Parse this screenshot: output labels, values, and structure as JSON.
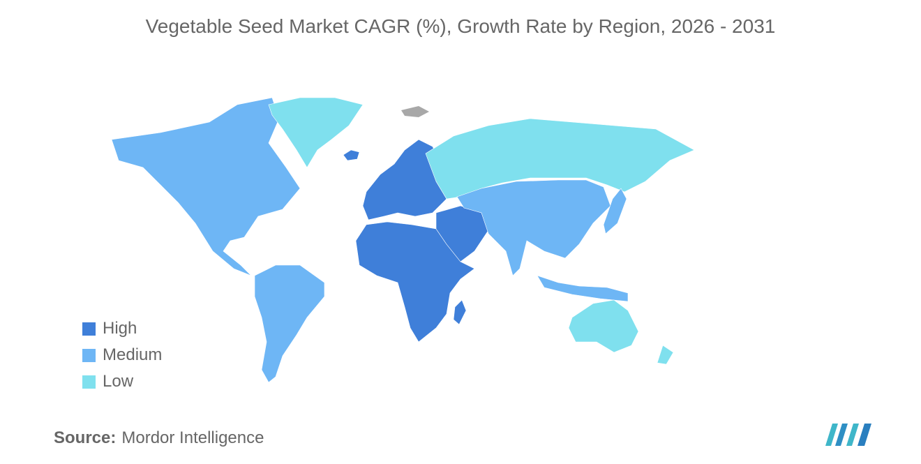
{
  "title": "Vegetable Seed Market CAGR (%), Growth Rate by Region, 2026 - 2031",
  "legend": [
    {
      "label": "High",
      "color": "#3f7fd9"
    },
    {
      "label": "Medium",
      "color": "#6eb6f5"
    },
    {
      "label": "Low",
      "color": "#7fe0ee"
    }
  ],
  "colors": {
    "high": "#3f7fd9",
    "medium": "#6eb6f5",
    "low": "#7fe0ee",
    "no_data": "#a8a8a8"
  },
  "regions": [
    {
      "name": "north-america",
      "level": "Medium"
    },
    {
      "name": "greenland",
      "level": "Low"
    },
    {
      "name": "south-america",
      "level": "Medium"
    },
    {
      "name": "europe",
      "level": "High"
    },
    {
      "name": "africa",
      "level": "High"
    },
    {
      "name": "middle-east",
      "level": "High"
    },
    {
      "name": "russia",
      "level": "Low"
    },
    {
      "name": "asia",
      "level": "Medium"
    },
    {
      "name": "australia",
      "level": "Low"
    },
    {
      "name": "new-zealand",
      "level": "Low"
    }
  ],
  "source": {
    "label": "Source:",
    "value": "Mordor Intelligence"
  },
  "logo": {
    "icon": "mordor-intelligence-logo"
  }
}
